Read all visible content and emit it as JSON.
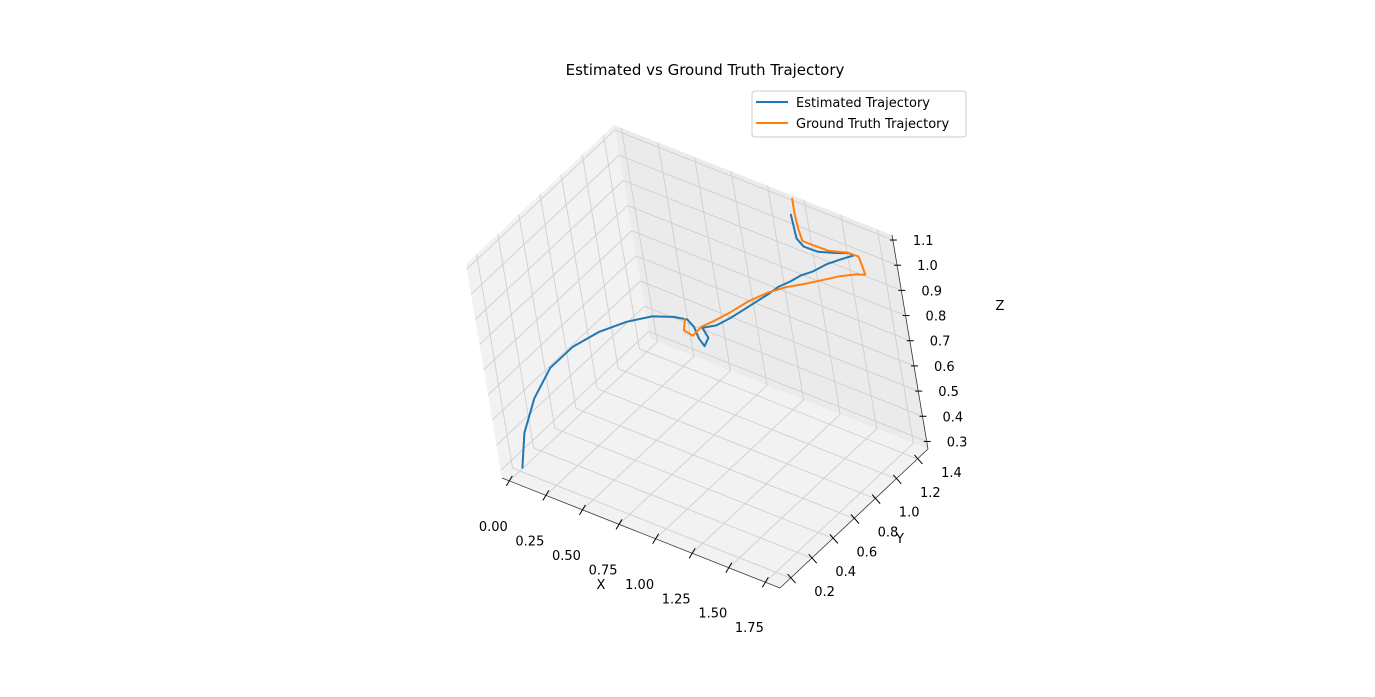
{
  "chart_data": {
    "type": "line",
    "projection": "3d",
    "title": "Estimated vs Ground Truth Trajectory",
    "xlabel": "X",
    "ylabel": "Y",
    "zlabel": "Z",
    "xlim": [
      -0.05,
      1.85
    ],
    "ylim": [
      0.1,
      1.5
    ],
    "zlim": [
      0.27,
      1.12
    ],
    "xticks": [
      "0.00",
      "0.25",
      "0.50",
      "0.75",
      "1.00",
      "1.25",
      "1.50",
      "1.75"
    ],
    "yticks": [
      "0.2",
      "0.4",
      "0.6",
      "0.8",
      "1.0",
      "1.2",
      "1.4"
    ],
    "zticks": [
      "0.3",
      "0.4",
      "0.5",
      "0.6",
      "0.7",
      "0.8",
      "0.9",
      "1.0",
      "1.1"
    ],
    "grid": true,
    "legend_position": "top-right",
    "series": [
      {
        "name": "Estimated Trajectory",
        "color": "#1f77b4",
        "points": [
          [
            0.04,
            0.18,
            0.3
          ],
          [
            0.08,
            0.2,
            0.44
          ],
          [
            0.16,
            0.24,
            0.58
          ],
          [
            0.26,
            0.3,
            0.7
          ],
          [
            0.38,
            0.38,
            0.78
          ],
          [
            0.52,
            0.46,
            0.84
          ],
          [
            0.66,
            0.54,
            0.88
          ],
          [
            0.8,
            0.6,
            0.91
          ],
          [
            0.92,
            0.64,
            0.92
          ],
          [
            1.0,
            0.66,
            0.92
          ],
          [
            1.04,
            0.66,
            0.9
          ],
          [
            1.08,
            0.64,
            0.87
          ],
          [
            1.13,
            0.62,
            0.86
          ],
          [
            1.15,
            0.64,
            0.89
          ],
          [
            1.1,
            0.66,
            0.91
          ],
          [
            1.17,
            0.7,
            0.92
          ],
          [
            1.23,
            0.76,
            0.94
          ],
          [
            1.28,
            0.82,
            0.96
          ],
          [
            1.33,
            0.88,
            0.98
          ],
          [
            1.38,
            0.94,
            1.0
          ],
          [
            1.42,
            0.98,
            1.02
          ],
          [
            1.48,
            1.02,
            1.04
          ],
          [
            1.53,
            1.06,
            1.06
          ],
          [
            1.58,
            1.1,
            1.07
          ],
          [
            1.64,
            1.16,
            1.09
          ],
          [
            1.7,
            1.22,
            1.1
          ],
          [
            1.74,
            1.28,
            1.1
          ],
          [
            1.69,
            1.3,
            1.09
          ],
          [
            1.61,
            1.28,
            1.08
          ],
          [
            1.52,
            1.24,
            1.08
          ],
          [
            1.44,
            1.22,
            1.09
          ],
          [
            1.38,
            1.24,
            1.1
          ],
          [
            1.32,
            1.3,
            1.11
          ],
          [
            1.26,
            1.36,
            1.12
          ]
        ]
      },
      {
        "name": "Ground Truth Trajectory",
        "color": "#ff7f0e",
        "points": [
          [
            1.0,
            0.64,
            0.93
          ],
          [
            0.98,
            0.64,
            0.88
          ],
          [
            1.02,
            0.66,
            0.86
          ],
          [
            1.06,
            0.7,
            0.89
          ],
          [
            1.12,
            0.74,
            0.91
          ],
          [
            1.2,
            0.8,
            0.94
          ],
          [
            1.29,
            0.86,
            0.98
          ],
          [
            1.38,
            0.92,
            1.01
          ],
          [
            1.47,
            0.98,
            1.03
          ],
          [
            1.56,
            1.04,
            1.04
          ],
          [
            1.64,
            1.1,
            1.05
          ],
          [
            1.72,
            1.16,
            1.06
          ],
          [
            1.79,
            1.22,
            1.06
          ],
          [
            1.82,
            1.26,
            1.05
          ],
          [
            1.78,
            1.3,
            1.04
          ],
          [
            1.73,
            1.34,
            1.05
          ],
          [
            1.74,
            1.32,
            1.08
          ],
          [
            1.68,
            1.3,
            1.09
          ],
          [
            1.58,
            1.26,
            1.09
          ],
          [
            1.5,
            1.24,
            1.1
          ],
          [
            1.42,
            1.24,
            1.1
          ],
          [
            1.35,
            1.3,
            1.11
          ],
          [
            1.27,
            1.38,
            1.12
          ],
          [
            1.2,
            1.46,
            1.13
          ]
        ]
      }
    ]
  }
}
